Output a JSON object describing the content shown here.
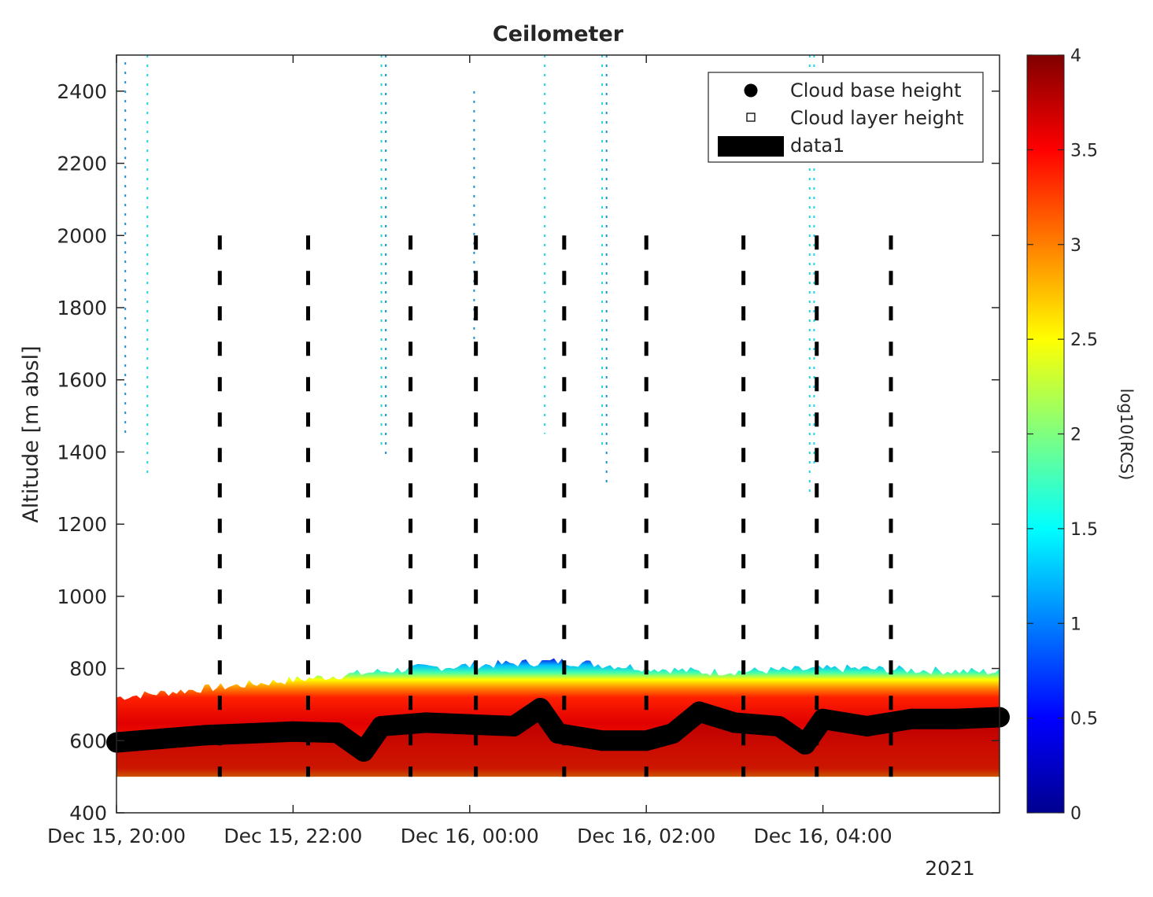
{
  "chart_data": {
    "type": "heatmap",
    "title": "Ceilometer",
    "ylabel": "Altitude [m absl]",
    "xlabel": "",
    "x_tick_labels": [
      "Dec 15, 20:00",
      "Dec 15, 22:00",
      "Dec 16, 00:00",
      "Dec 16, 02:00",
      "Dec 16, 04:00"
    ],
    "x_ticks_hours": [
      20,
      22,
      24,
      26,
      28
    ],
    "x_range_hours": [
      20,
      30
    ],
    "year_label": "2021",
    "y_ticks": [
      400,
      600,
      800,
      1000,
      1200,
      1400,
      1600,
      1800,
      2000,
      2200,
      2400
    ],
    "ylim": [
      400,
      2500
    ],
    "colorbar": {
      "label": "log10(RCS)",
      "range": [
        0,
        4
      ],
      "ticks": [
        0,
        0.5,
        1,
        1.5,
        2,
        2.5,
        3,
        3.5,
        4
      ],
      "tick_labels": [
        "0",
        "0.5",
        "1",
        "1.5",
        "2",
        "2.5",
        "3",
        "3.5",
        "4"
      ],
      "colormap": "jet"
    },
    "legend": {
      "placement": "top-right",
      "entries": [
        "Cloud base height",
        "Cloud layer height",
        "data1"
      ]
    },
    "signal_layer": {
      "bottom_m": 500,
      "top_m_approx": [
        720,
        760,
        800,
        820,
        790,
        800,
        790
      ]
    },
    "cloud_base_height": {
      "name": "Cloud base height",
      "hours": [
        20.0,
        20.5,
        21.0,
        21.5,
        22.0,
        22.5,
        22.8,
        23.0,
        23.5,
        24.0,
        24.5,
        24.8,
        25.0,
        25.5,
        26.0,
        26.3,
        26.6,
        27.0,
        27.5,
        27.8,
        28.0,
        28.5,
        29.0,
        29.5,
        30.0
      ],
      "values": [
        595,
        605,
        615,
        620,
        625,
        622,
        570,
        640,
        650,
        645,
        640,
        690,
        620,
        600,
        600,
        620,
        680,
        650,
        640,
        590,
        660,
        640,
        660,
        660,
        665
      ]
    },
    "vertical_markers": {
      "name": "data1",
      "style": "dashed",
      "hours": [
        21.17,
        22.17,
        23.33,
        24.07,
        25.07,
        26.0,
        27.1,
        27.93,
        28.77
      ],
      "y_range": [
        500,
        2000
      ]
    }
  }
}
